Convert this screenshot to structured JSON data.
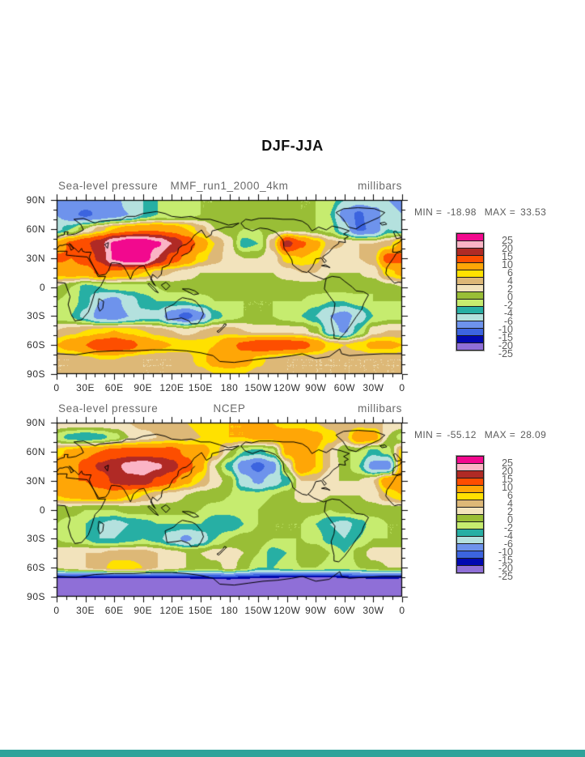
{
  "page": {
    "title": "DJF-JJA",
    "footer_bar_color": "#2ea39a"
  },
  "axes": {
    "y_ticks": [
      "90N",
      "60N",
      "30N",
      "0",
      "30S",
      "60S",
      "90S"
    ],
    "x_ticks": [
      "0",
      "30E",
      "60E",
      "90E",
      "120E",
      "150E",
      "180",
      "150W",
      "120W",
      "90W",
      "60W",
      "30W",
      "0"
    ]
  },
  "colorbar": {
    "labels": [
      "25",
      "20",
      "15",
      "10",
      "6",
      "4",
      "2",
      "0",
      "-2",
      "-4",
      "-6",
      "-10",
      "-15",
      "-20",
      "-25"
    ]
  },
  "panels": [
    {
      "left_label": "Sea-level pressure",
      "center_label": "MMF_run1_2000_4km",
      "right_label": "millibars",
      "min_label": "MIN =",
      "min_value": "-18.98",
      "max_label": "MAX =",
      "max_value": "33.53"
    },
    {
      "left_label": "Sea-level pressure",
      "center_label": "NCEP",
      "right_label": "millibars",
      "min_label": "MIN =",
      "min_value": "-55.12",
      "max_label": "MAX =",
      "max_value": "28.09"
    }
  ],
  "chart_data": [
    {
      "type": "heatmap",
      "title": "MMF_run1_2000_4km",
      "variable": "Sea-level pressure",
      "units": "millibars",
      "season_diff": "DJF-JJA",
      "min": -18.98,
      "max": 33.53,
      "levels": [
        25,
        20,
        15,
        10,
        6,
        4,
        2,
        0,
        -2,
        -4,
        -6,
        -10,
        -15,
        -20,
        -25
      ],
      "colors": [
        "#f2098e",
        "#fbb4c5",
        "#b02a25",
        "#fd4e00",
        "#ffa606",
        "#ffe100",
        "#ddb877",
        "#f2e3bc",
        "#99be36",
        "#c6ec6f",
        "#27afa4",
        "#b4e1de",
        "#6e93ec",
        "#3c64df",
        "#0008b0",
        "#8f6fd7"
      ],
      "lon": [
        0,
        15,
        30,
        45,
        60,
        75,
        90,
        105,
        120,
        135,
        150,
        165,
        180,
        195,
        210,
        225,
        240,
        255,
        270,
        285,
        300,
        315,
        330,
        345,
        360
      ],
      "lat": [
        90,
        75,
        60,
        45,
        30,
        15,
        0,
        -15,
        -30,
        -45,
        -60,
        -75,
        -90
      ],
      "values": [
        [
          -12,
          -12,
          -12,
          -14,
          -12,
          -8,
          -6,
          -4,
          -3,
          -2,
          -2,
          -2,
          -1,
          -1,
          -1,
          -1,
          -2,
          -2,
          -2,
          -3,
          -6,
          -8,
          -8,
          -10,
          -12
        ],
        [
          -10,
          -14,
          -16,
          -14,
          -12,
          -10,
          -6,
          -4,
          -4,
          -3,
          -2,
          -2,
          -1,
          -1,
          -1,
          -1,
          -1,
          -2,
          -2,
          -4,
          -12,
          -16,
          -12,
          -8,
          -10
        ],
        [
          -7,
          -4,
          0,
          3,
          6,
          8,
          9,
          9,
          8,
          6,
          3,
          0,
          -1,
          -2,
          -2,
          -1,
          -1,
          -1,
          -2,
          -3,
          -8,
          -16,
          -14,
          -6,
          -7
        ],
        [
          7,
          11,
          14,
          18,
          26,
          30,
          30,
          26,
          20,
          14,
          8,
          4,
          1,
          -5,
          -4,
          3,
          17,
          11,
          7,
          3,
          2,
          2,
          2,
          3,
          7
        ],
        [
          11,
          10,
          12,
          16,
          26,
          30,
          30,
          20,
          13,
          9,
          5,
          3,
          1,
          0,
          0,
          1,
          5,
          6,
          5,
          0,
          1,
          2,
          3,
          12,
          11
        ],
        [
          7,
          8,
          8,
          11,
          9,
          8,
          6,
          3,
          2,
          1,
          0,
          0,
          0,
          0,
          0,
          0,
          1,
          2,
          2,
          0,
          0,
          0,
          1,
          5,
          7
        ],
        [
          0,
          -2,
          -5,
          -4,
          -3,
          -3,
          -3,
          -2,
          -1,
          -1,
          -1,
          -1,
          -1,
          -1,
          -1,
          -1,
          -1,
          -1,
          -1,
          -1,
          -1,
          -1,
          -2,
          -1,
          0
        ],
        [
          -2,
          -3,
          -5,
          -10,
          -12,
          -8,
          -5,
          -4,
          -4,
          -4,
          -3,
          -2,
          -2,
          -2,
          -2,
          -2,
          -2,
          -2,
          -3,
          -4,
          -4,
          -3,
          -2,
          -2,
          -2
        ],
        [
          -3,
          -4,
          -7,
          -12,
          -13,
          -10,
          -7,
          -7,
          -13,
          -17,
          -12,
          -5,
          -3,
          -2,
          -2,
          -2,
          -3,
          -4,
          -6,
          -10,
          -12,
          -8,
          -4,
          -3,
          -3
        ],
        [
          2,
          3,
          4,
          5,
          6,
          5,
          4,
          3,
          2,
          1,
          2,
          3,
          3,
          2,
          1,
          1,
          1,
          1,
          -1,
          -8,
          -11,
          -4,
          1,
          2,
          2
        ],
        [
          6,
          8,
          10,
          13,
          14,
          12,
          9,
          7,
          6,
          5,
          5,
          6,
          9,
          11,
          13,
          14,
          13,
          12,
          9,
          5,
          4,
          5,
          7,
          7,
          6
        ],
        [
          2,
          2,
          3,
          4,
          4,
          3,
          2,
          2,
          2,
          3,
          5,
          8,
          10,
          8,
          5,
          3,
          2,
          2,
          2,
          2,
          2,
          2,
          2,
          2,
          2
        ],
        [
          2,
          2,
          2,
          2,
          2,
          2,
          2,
          2,
          2,
          2,
          3,
          4,
          4,
          4,
          3,
          2,
          2,
          2,
          2,
          2,
          2,
          2,
          2,
          2,
          2
        ]
      ]
    },
    {
      "type": "heatmap",
      "title": "NCEP",
      "variable": "Sea-level pressure",
      "units": "millibars",
      "season_diff": "DJF-JJA",
      "min": -55.12,
      "max": 28.09,
      "levels": [
        25,
        20,
        15,
        10,
        6,
        4,
        2,
        0,
        -2,
        -4,
        -6,
        -10,
        -15,
        -20,
        -25
      ],
      "colors": [
        "#f2098e",
        "#fbb4c5",
        "#b02a25",
        "#fd4e00",
        "#ffa606",
        "#ffe100",
        "#ddb877",
        "#f2e3bc",
        "#99be36",
        "#c6ec6f",
        "#27afa4",
        "#b4e1de",
        "#6e93ec",
        "#3c64df",
        "#0008b0",
        "#8f6fd7"
      ],
      "lon": [
        0,
        15,
        30,
        45,
        60,
        75,
        90,
        105,
        120,
        135,
        150,
        165,
        180,
        195,
        210,
        225,
        240,
        255,
        270,
        285,
        300,
        315,
        330,
        345,
        360
      ],
      "lat": [
        90,
        75,
        60,
        45,
        30,
        15,
        0,
        -15,
        -30,
        -45,
        -60,
        -75,
        -90
      ],
      "values": [
        [
          2,
          2,
          2,
          2,
          2,
          2,
          3,
          3,
          4,
          4,
          5,
          5,
          6,
          6,
          6,
          6,
          5,
          5,
          4,
          3,
          2,
          2,
          2,
          2,
          2
        ],
        [
          -3,
          -5,
          -6,
          -5,
          -3,
          0,
          1,
          2,
          3,
          3,
          4,
          5,
          6,
          6,
          7,
          7,
          8,
          8,
          7,
          5,
          3,
          9,
          8,
          0,
          -3
        ],
        [
          5,
          7,
          9,
          10,
          12,
          12,
          12,
          12,
          12,
          9,
          8,
          5,
          0,
          -4,
          -5,
          -3,
          7,
          8,
          6,
          2,
          -2,
          -2,
          -5,
          -3,
          5
        ],
        [
          8,
          9,
          11,
          16,
          18,
          22,
          24,
          21,
          17,
          12,
          7,
          0,
          -5,
          -13,
          -17,
          -12,
          0,
          10,
          6,
          2,
          -1,
          -4,
          -12,
          -13,
          8
        ],
        [
          10,
          10,
          10,
          12,
          16,
          18,
          18,
          14,
          11,
          7,
          4,
          1,
          -1,
          -8,
          -11,
          -8,
          -5,
          2,
          2,
          0,
          0,
          0,
          2,
          9,
          10
        ],
        [
          6,
          7,
          8,
          8,
          8,
          6,
          4,
          2,
          1,
          0,
          -1,
          -1,
          -2,
          -3,
          -3,
          -2,
          -1,
          1,
          1,
          0,
          0,
          0,
          1,
          4,
          6
        ],
        [
          -1,
          -1,
          -2,
          -2,
          -2,
          -1,
          -1,
          -1,
          -1,
          -1,
          -2,
          -3,
          -3,
          -3,
          -2,
          -1,
          -1,
          -1,
          -1,
          -2,
          -1,
          -1,
          -1,
          -1,
          -1
        ],
        [
          -2,
          -3,
          -4,
          -6,
          -7,
          -6,
          -5,
          -4,
          -4,
          -4,
          -4,
          -6,
          -6,
          -4,
          -2,
          -2,
          -2,
          -2,
          -4,
          -6,
          -7,
          -5,
          -3,
          -2,
          -2
        ],
        [
          -2,
          -3,
          -4,
          -6,
          -6,
          -5,
          -4,
          -5,
          -8,
          -11,
          -8,
          -4,
          -2,
          -1,
          -1,
          -2,
          -2,
          -2,
          -3,
          -5,
          -6,
          -4,
          -2,
          -2,
          -2
        ],
        [
          1,
          2,
          2,
          2,
          3,
          3,
          3,
          2,
          1,
          0,
          0,
          1,
          1,
          0,
          -2,
          -5,
          -4,
          -1,
          0,
          -2,
          -4,
          -1,
          1,
          1,
          1
        ],
        [
          0,
          1,
          2,
          3,
          5,
          5,
          4,
          2,
          1,
          0,
          -1,
          -1,
          1,
          -1,
          -4,
          -4,
          -3,
          -2,
          -2,
          -3,
          -3,
          -2,
          -1,
          0,
          0
        ],
        [
          -30,
          -31,
          -32,
          -33,
          -34,
          -34,
          -33,
          -32,
          -31,
          -30,
          -29,
          -28,
          -28,
          -29,
          -30,
          -31,
          -32,
          -33,
          -33,
          -32,
          -31,
          -30,
          -29,
          -29,
          -30
        ],
        [
          -42,
          -42,
          -42,
          -42,
          -42,
          -42,
          -42,
          -42,
          -42,
          -42,
          -42,
          -42,
          -42,
          -42,
          -42,
          -42,
          -42,
          -42,
          -42,
          -42,
          -42,
          -42,
          -42,
          -42,
          -42
        ]
      ]
    }
  ]
}
